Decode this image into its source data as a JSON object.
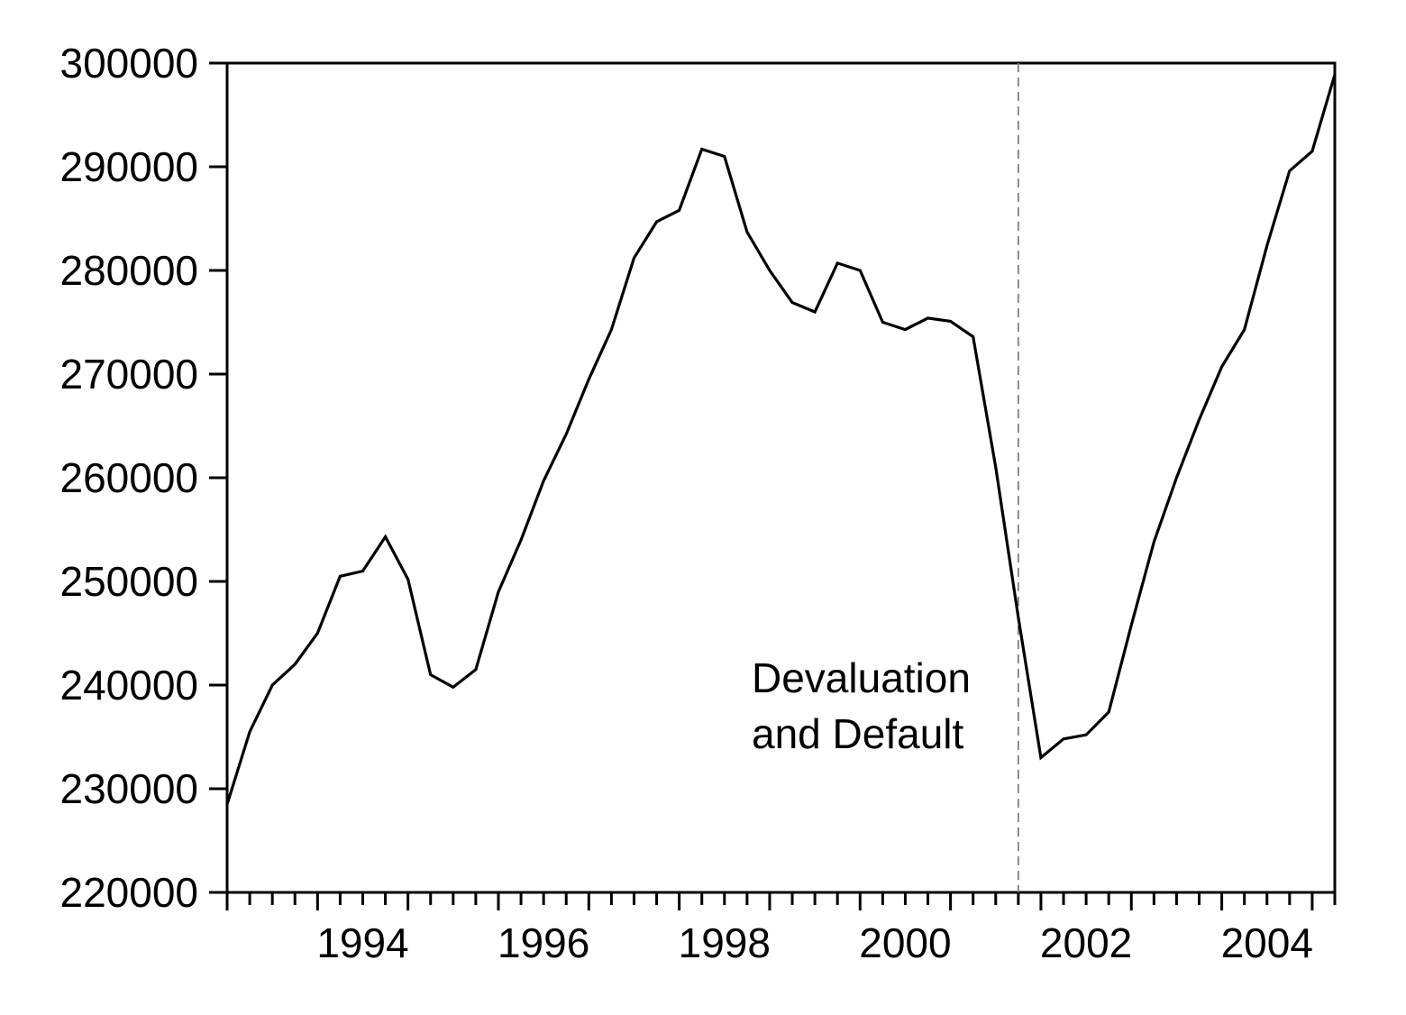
{
  "chart_data": {
    "type": "line",
    "title": "",
    "xlabel": "",
    "ylabel": "",
    "xlim": [
      1993.0,
      2005.25
    ],
    "ylim": [
      220000,
      300000
    ],
    "grid": false,
    "legend": "none",
    "line_color": "#000000",
    "x_tick_labels": [
      "1994",
      "1996",
      "1998",
      "2000",
      "2002",
      "2004"
    ],
    "y_tick_labels": [
      "300000",
      "290000",
      "280000",
      "270000",
      "260000",
      "250000",
      "240000",
      "230000",
      "220000"
    ],
    "series": [
      {
        "x": [
          1993.0,
          1993.25,
          1993.5,
          1993.75,
          1994.0,
          1994.25,
          1994.5,
          1994.75,
          1995.0,
          1995.25,
          1995.5,
          1995.75,
          1996.0,
          1996.25,
          1996.5,
          1996.75,
          1997.0,
          1997.25,
          1997.5,
          1997.75,
          1998.0,
          1998.25,
          1998.5,
          1998.75,
          1999.0,
          1999.25,
          1999.5,
          1999.75,
          2000.0,
          2000.25,
          2000.5,
          2000.75,
          2001.0,
          2001.25,
          2001.5,
          2001.75,
          2002.0,
          2002.25,
          2002.5,
          2002.75,
          2003.0,
          2003.25,
          2003.5,
          2003.75,
          2004.0,
          2004.25,
          2004.5,
          2004.75,
          2005.0,
          2005.25
        ],
        "values": [
          228500,
          235500,
          240000,
          242000,
          245000,
          250500,
          251000,
          254300,
          250200,
          241000,
          239800,
          241500,
          249000,
          254000,
          259700,
          264200,
          269500,
          274300,
          281200,
          284700,
          285800,
          291700,
          291000,
          283700,
          280000,
          276900,
          276000,
          280700,
          280000,
          275000,
          274300,
          275400,
          275100,
          273600,
          261000,
          246500,
          233000,
          234800,
          235200,
          237400,
          245800,
          253800,
          260000,
          265600,
          270700,
          274300,
          282400,
          289600,
          291500,
          298900
        ]
      }
    ],
    "annotations": [
      {
        "text": "Devaluation",
        "x": 2001.25
      },
      {
        "text": "and Default",
        "x": 2001.25
      }
    ],
    "vertical_marker_x": 2001.75
  }
}
